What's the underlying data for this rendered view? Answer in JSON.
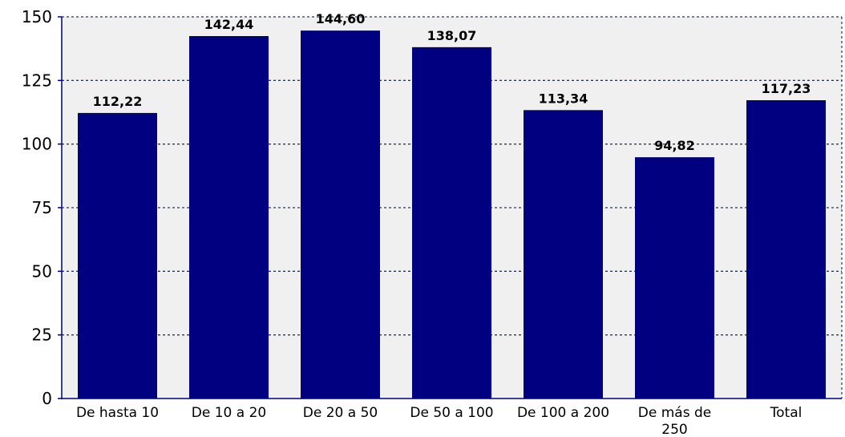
{
  "chart_data": {
    "type": "bar",
    "categories": [
      "De hasta 10",
      "De 10 a 20",
      "De 20 a 50",
      "De 50 a 100",
      "De 100 a 200",
      "De más de 250",
      "Total"
    ],
    "category_label_lines": [
      [
        "De hasta 10"
      ],
      [
        "De 10 a 20"
      ],
      [
        "De 20 a 50"
      ],
      [
        "De 50 a 100"
      ],
      [
        "De 100 a 200"
      ],
      [
        "De más de",
        "250"
      ],
      [
        "Total"
      ]
    ],
    "values": [
      112.22,
      142.44,
      144.6,
      138.07,
      113.34,
      94.82,
      117.23
    ],
    "data_labels": [
      "112,22",
      "142,44",
      "144,60",
      "138,07",
      "113,34",
      "94,82",
      "117,23"
    ],
    "title": "",
    "xlabel": "",
    "ylabel": "",
    "ylim": [
      0,
      150
    ],
    "yticks": [
      0,
      25,
      50,
      75,
      100,
      125,
      150
    ],
    "grid": true,
    "legend": "none",
    "colors": {
      "bar": "#000080",
      "plot_background": "#f0f0f0",
      "gridline": "#1f3a6b",
      "axis": "#000080"
    }
  }
}
